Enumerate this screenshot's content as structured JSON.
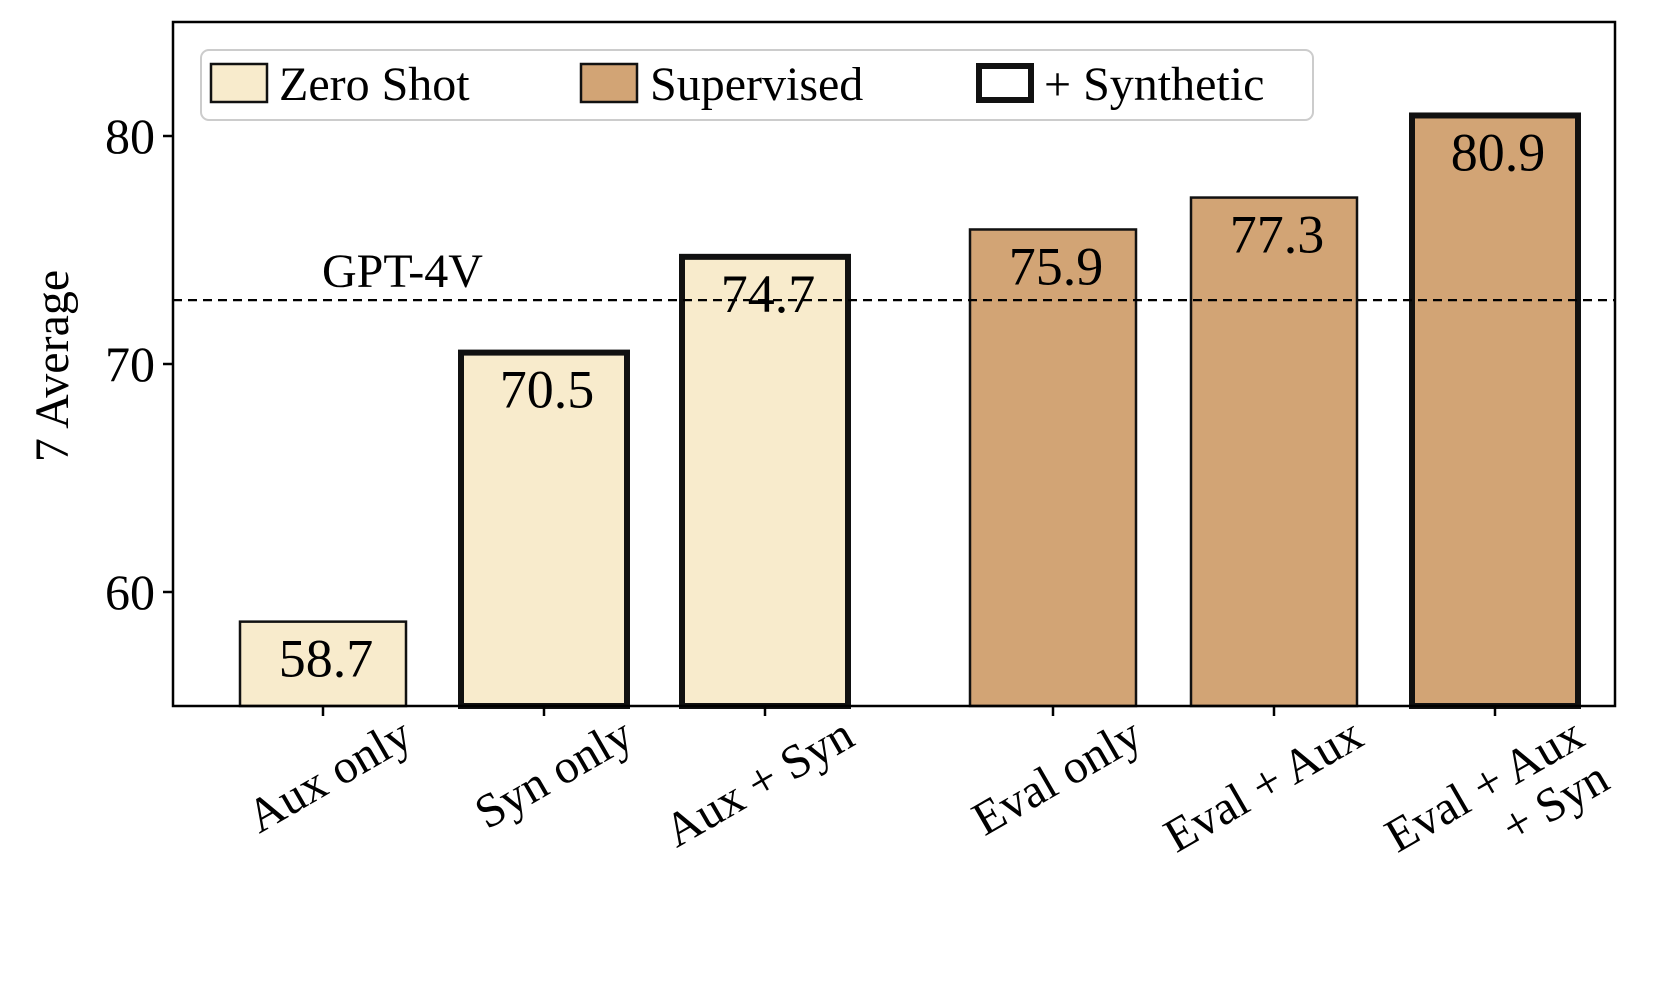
{
  "chart_data": {
    "type": "bar",
    "ylabel": "7 Average",
    "xlabel": "",
    "ylim": [
      55,
      85
    ],
    "yticks": [
      60,
      70,
      80
    ],
    "categories": [
      [
        "Aux only"
      ],
      [
        "Syn only"
      ],
      [
        "Aux + Syn"
      ],
      [
        "Eval only"
      ],
      [
        "Eval + Aux"
      ],
      [
        "Eval + Aux",
        "+ Syn"
      ]
    ],
    "values": [
      58.7,
      70.5,
      74.7,
      75.9,
      77.3,
      80.9
    ],
    "value_labels": [
      "58.7",
      "70.5",
      "74.7",
      "75.9",
      "77.3",
      "80.9"
    ],
    "groups": [
      "Zero Shot",
      "Zero Shot",
      "Zero Shot",
      "Supervised",
      "Supervised",
      "Supervised"
    ],
    "synthetic": [
      false,
      true,
      true,
      false,
      false,
      true
    ],
    "reference_line": {
      "label": "GPT-4V",
      "value": 72.8,
      "style": "dashed"
    },
    "legend": {
      "placement": "top-left",
      "items": [
        {
          "label": "Zero Shot",
          "kind": "zero-shot"
        },
        {
          "label": "Supervised",
          "kind": "supervised"
        },
        {
          "label": "+ Synthetic",
          "kind": "synthetic"
        }
      ]
    },
    "colors": {
      "zero_shot": "#f8ebcc",
      "supervised": "#d2a475",
      "edge": "#111111"
    },
    "grid": false
  }
}
